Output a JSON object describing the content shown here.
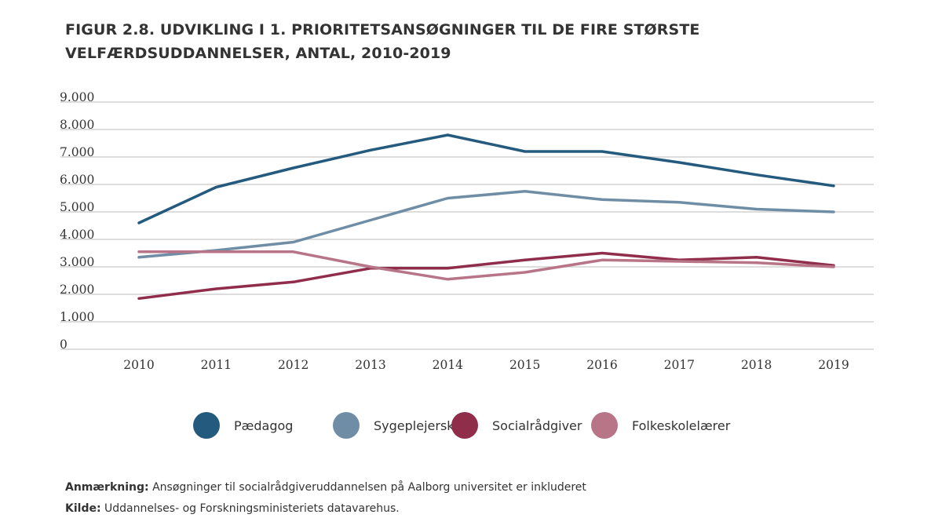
{
  "chart_data": {
    "type": "line",
    "title": "FIGUR 2.8. UDVIKLING I 1. PRIORITETSANSØGNINGER TIL DE FIRE STØRSTE VELFÆRDSUDDANNELSER, ANTAL, 2010-2019",
    "xlabel": "",
    "ylabel": "",
    "categories": [
      "2010",
      "2011",
      "2012",
      "2013",
      "2014",
      "2015",
      "2016",
      "2017",
      "2018",
      "2019"
    ],
    "ylim": [
      0,
      9000
    ],
    "yticks": [
      0,
      1000,
      2000,
      3000,
      4000,
      5000,
      6000,
      7000,
      8000,
      9000
    ],
    "ytick_labels": [
      "0",
      "1.000",
      "2.000",
      "3.000",
      "4.000",
      "5.000",
      "6.000",
      "7.000",
      "8.000",
      "9.000"
    ],
    "grid": "horizontal",
    "legend_position": "bottom",
    "series": [
      {
        "name": "Pædagog",
        "color": "#245a7e",
        "values": [
          4600,
          5900,
          6600,
          7250,
          7800,
          7200,
          7200,
          6800,
          6350,
          5950
        ]
      },
      {
        "name": "Sygeplejerske",
        "color": "#6f8ea6",
        "values": [
          3350,
          3600,
          3900,
          4700,
          5500,
          5750,
          5450,
          5350,
          5100,
          5000
        ]
      },
      {
        "name": "Socialrådgiver",
        "color": "#8f2d4b",
        "values": [
          1850,
          2200,
          2450,
          2950,
          2950,
          3250,
          3500,
          3250,
          3350,
          3050
        ]
      },
      {
        "name": "Folkeskolelærer",
        "color": "#b87587",
        "values": [
          3550,
          3550,
          3550,
          3000,
          2550,
          2800,
          3250,
          3200,
          3150,
          3000
        ]
      }
    ]
  },
  "notes": {
    "remark_label": "Anmærkning:",
    "remark_text": " Ansøgninger til socialrådgiveruddannelsen på Aalborg universitet er inkluderet",
    "source_label": "Kilde:",
    "source_text": " Uddannelses- og Forskningsministeriets datavarehus."
  }
}
